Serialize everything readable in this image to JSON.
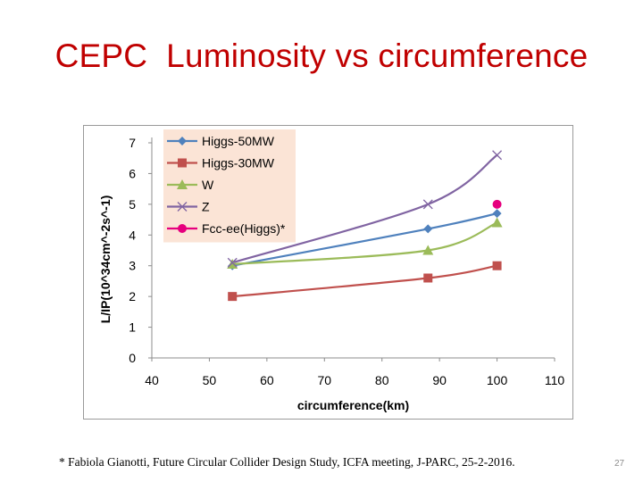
{
  "slide": {
    "title": "CEPC  Luminosity vs circumference",
    "footnote": "* Fabiola Gianotti, Future Circular Collider Design Study, ICFA meeting, J-PARC, 25-2-2016.",
    "slide_number": "27"
  },
  "colors": {
    "title": "#c00000",
    "legend_bg": "#fbe4d6",
    "axis": "#8c8c8c"
  },
  "chart_data": {
    "type": "line",
    "xlabel": "circumference(km)",
    "ylabel": "L/IP(10^34cm^-2s^-1)",
    "xlim": [
      40,
      110
    ],
    "ylim": [
      0,
      7
    ],
    "xticks": [
      40,
      50,
      60,
      70,
      80,
      90,
      100,
      110
    ],
    "yticks": [
      0,
      1,
      2,
      3,
      4,
      5,
      6,
      7
    ],
    "grid": false,
    "legend_position": "top-left",
    "series": [
      {
        "name": "Higgs-50MW",
        "color": "#4f81bd",
        "marker": "diamond",
        "x": [
          54,
          88,
          100
        ],
        "y": [
          3.0,
          4.2,
          4.7
        ]
      },
      {
        "name": "Higgs-30MW",
        "color": "#c0504d",
        "marker": "square",
        "x": [
          54,
          88,
          100
        ],
        "y": [
          2.0,
          2.6,
          3.0
        ]
      },
      {
        "name": "W",
        "color": "#9bbb59",
        "marker": "triangle",
        "x": [
          54,
          88,
          100
        ],
        "y": [
          3.05,
          3.5,
          4.4
        ]
      },
      {
        "name": "Z",
        "color": "#8064a2",
        "marker": "x",
        "x": [
          54,
          88,
          100
        ],
        "y": [
          3.1,
          5.0,
          6.6
        ]
      },
      {
        "name": "Fcc-ee(Higgs)*",
        "color": "#e6007e",
        "marker": "circle",
        "x": [
          100
        ],
        "y": [
          5.0
        ]
      }
    ]
  }
}
